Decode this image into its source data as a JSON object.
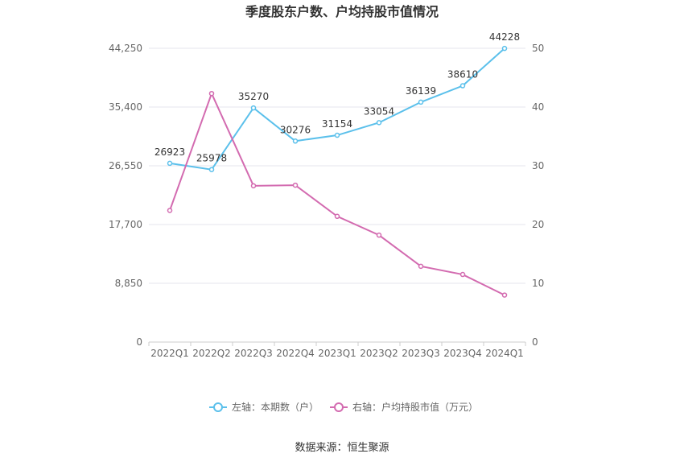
{
  "chart_data": {
    "type": "line",
    "title": "季度股东户数、户均持股市值情况",
    "categories": [
      "2022Q1",
      "2022Q2",
      "2022Q3",
      "2022Q4",
      "2023Q1",
      "2023Q2",
      "2023Q3",
      "2023Q4",
      "2024Q1"
    ],
    "series": [
      {
        "name": "左轴：本期数（户）",
        "axis": "left",
        "color": "#5bc0eb",
        "values": [
          26923,
          25978,
          35270,
          30276,
          31154,
          33054,
          36139,
          38610,
          44228
        ],
        "labels": [
          "26923",
          "25978",
          "35270",
          "30276",
          "31154",
          "33054",
          "36139",
          "38610",
          "44228"
        ]
      },
      {
        "name": "右轴：户均持股市值（万元）",
        "axis": "right",
        "color": "#d36bb0",
        "values": [
          22.4,
          42.3,
          26.6,
          26.7,
          21.4,
          18.2,
          12.9,
          11.5,
          8.0
        ]
      }
    ],
    "y_left": {
      "min": 0,
      "max": 44250,
      "ticks": [
        0,
        8850,
        17700,
        26550,
        35400,
        44250
      ],
      "tick_labels": [
        "0",
        "8,850",
        "17,700",
        "26,550",
        "35,400",
        "44,250"
      ]
    },
    "y_right": {
      "min": 0,
      "max": 50,
      "ticks": [
        0,
        10,
        20,
        30,
        40,
        50
      ],
      "tick_labels": [
        "0",
        "10",
        "20",
        "30",
        "40",
        "50"
      ]
    },
    "grid": true,
    "legend_position": "bottom",
    "source": "数据来源：恒生聚源"
  }
}
